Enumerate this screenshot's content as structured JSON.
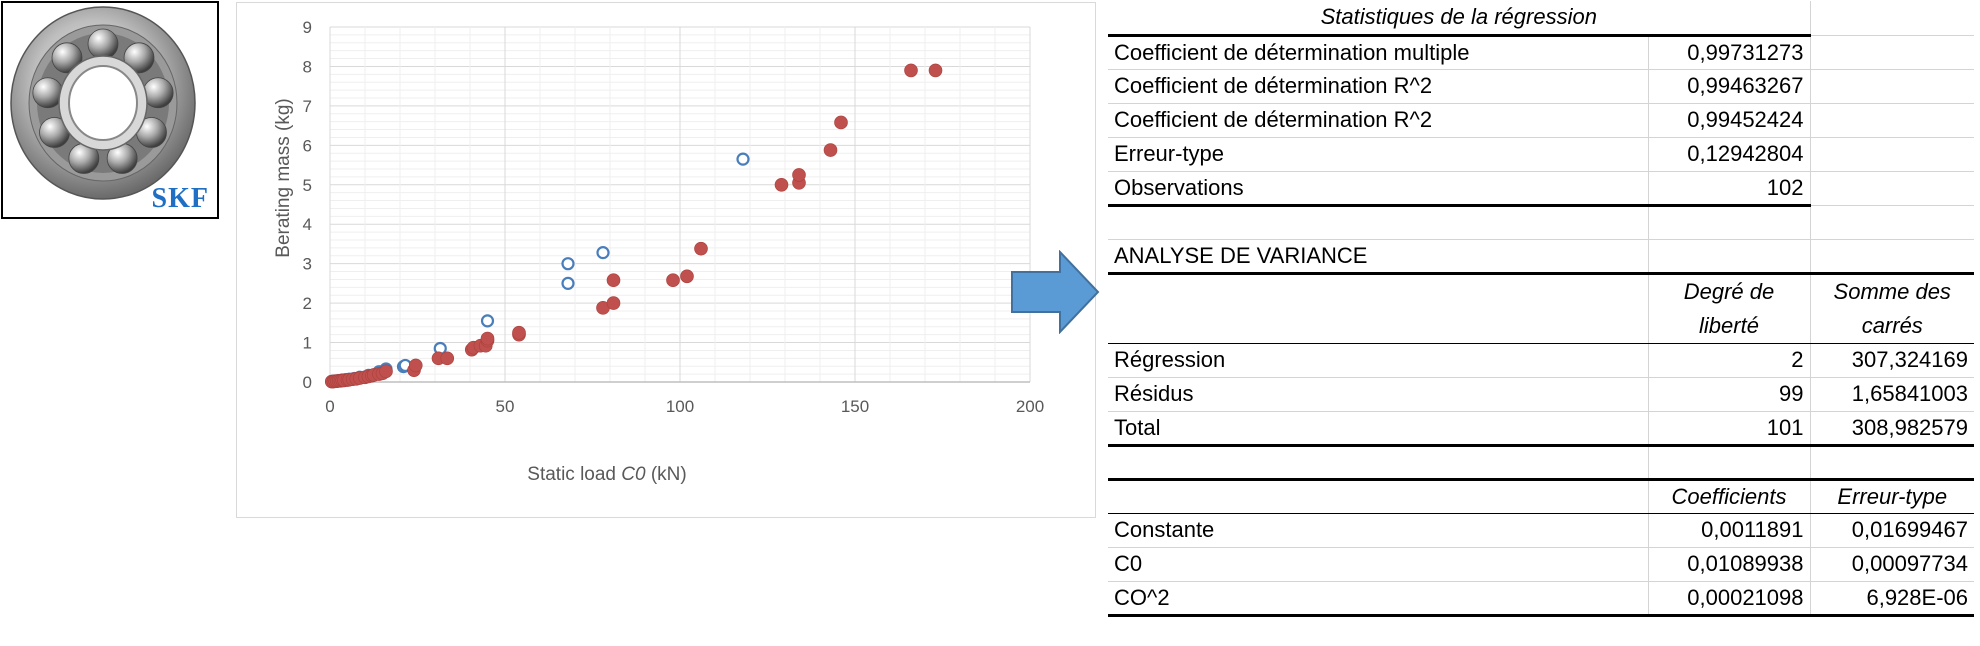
{
  "logo": {
    "brand": "SKF",
    "icon": "ball-bearing-icon"
  },
  "chart_data": {
    "type": "scatter",
    "xlabel_pre": "Static load ",
    "xlabel_var": "C0",
    "xlabel_post": " (kN)",
    "ylabel": "Berating mass (kg)",
    "xlim": [
      0,
      200
    ],
    "ylim": [
      0,
      9
    ],
    "x_ticks": [
      "0",
      "50",
      "100",
      "150",
      "200"
    ],
    "y_ticks": [
      "0",
      "1",
      "2",
      "3",
      "4",
      "5",
      "6",
      "7",
      "8",
      "9"
    ],
    "grid": true,
    "colors": {
      "hollow": "#4a7ebb",
      "filled": "#c0504d",
      "grid": "#d9d9d9"
    },
    "series": [
      {
        "style": "hollow",
        "points": [
          [
            0.5,
            0.01
          ],
          [
            1,
            0.02
          ],
          [
            1.5,
            0.02
          ],
          [
            2,
            0.03
          ],
          [
            2.8,
            0.03
          ],
          [
            3.5,
            0.05
          ],
          [
            4.5,
            0.06
          ],
          [
            5.5,
            0.07
          ],
          [
            7,
            0.09
          ],
          [
            8.5,
            0.12
          ],
          [
            11,
            0.17
          ],
          [
            14,
            0.26
          ],
          [
            16,
            0.33
          ],
          [
            21,
            0.39
          ],
          [
            21.5,
            0.42
          ],
          [
            31.5,
            0.85
          ],
          [
            45,
            1.55
          ],
          [
            68,
            3.0
          ],
          [
            68,
            2.5
          ],
          [
            78,
            3.28
          ],
          [
            118,
            5.65
          ]
        ]
      },
      {
        "style": "filled",
        "points": [
          [
            0.5,
            0.01
          ],
          [
            1,
            0.01
          ],
          [
            1.5,
            0.02
          ],
          [
            2,
            0.02
          ],
          [
            2.5,
            0.03
          ],
          [
            3,
            0.03
          ],
          [
            3.5,
            0.04
          ],
          [
            4,
            0.04
          ],
          [
            5,
            0.05
          ],
          [
            5.5,
            0.06
          ],
          [
            6.5,
            0.07
          ],
          [
            7.5,
            0.08
          ],
          [
            8.5,
            0.1
          ],
          [
            10,
            0.12
          ],
          [
            11,
            0.14
          ],
          [
            12,
            0.16
          ],
          [
            12.5,
            0.18
          ],
          [
            14,
            0.2
          ],
          [
            15,
            0.22
          ],
          [
            16,
            0.27
          ],
          [
            24,
            0.3
          ],
          [
            24.5,
            0.42
          ],
          [
            31,
            0.6
          ],
          [
            33.5,
            0.6
          ],
          [
            40.5,
            0.82
          ],
          [
            41,
            0.87
          ],
          [
            43,
            0.92
          ],
          [
            44.5,
            0.92
          ],
          [
            45,
            1.05
          ],
          [
            45,
            1.1
          ],
          [
            54,
            1.2
          ],
          [
            54,
            1.25
          ],
          [
            78,
            1.88
          ],
          [
            81,
            2.0
          ],
          [
            81,
            2.58
          ],
          [
            98,
            2.58
          ],
          [
            102,
            2.68
          ],
          [
            106,
            3.38
          ],
          [
            129,
            5.0
          ],
          [
            134,
            5.05
          ],
          [
            134,
            5.25
          ],
          [
            143,
            5.88
          ],
          [
            146,
            6.58
          ],
          [
            166,
            7.9
          ],
          [
            173,
            7.9
          ]
        ]
      }
    ]
  },
  "arrow": {
    "icon": "right-arrow-icon",
    "color": "#5b9bd5"
  },
  "table": {
    "stats_title": "Statistiques de la régression",
    "stats": [
      {
        "label": "Coefficient de détermination multiple",
        "value": "0,99731273"
      },
      {
        "label": "Coefficient de détermination R^2",
        "value": "0,99463267"
      },
      {
        "label": "Coefficient de détermination R^2",
        "value": "0,99452424"
      },
      {
        "label": "Erreur-type",
        "value": "0,12942804"
      },
      {
        "label": "Observations",
        "value": "102"
      }
    ],
    "anova_title": "ANALYSE DE VARIANCE",
    "anova_headers": {
      "df": "Degré de liberté",
      "ss": "Somme des carrés"
    },
    "anova_rows": [
      {
        "label": "Régression",
        "df": "2",
        "ss": "307,324169"
      },
      {
        "label": "Résidus",
        "df": "99",
        "ss": "1,65841003"
      },
      {
        "label": "Total",
        "df": "101",
        "ss": "308,982579"
      }
    ],
    "coef_headers": {
      "coef": "Coefficients",
      "se": "Erreur-type"
    },
    "coef_rows": [
      {
        "label": "Constante",
        "coef": "0,0011891",
        "se": "0,01699467"
      },
      {
        "label": "C0",
        "coef": "0,01089938",
        "se": "0,00097734"
      },
      {
        "label": "CO^2",
        "coef": "0,00021098",
        "se": "6,928E-06"
      }
    ]
  }
}
